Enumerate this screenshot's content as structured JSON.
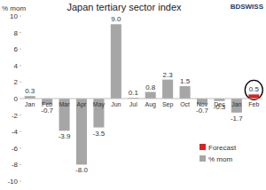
{
  "chart_data": {
    "type": "bar",
    "title": "Japan tertiary sector index",
    "y_label": "% mom",
    "logo": "BDSWISS",
    "categories": [
      "Jan",
      "Feb",
      "Mar",
      "Apr",
      "May",
      "Jun",
      "Jul",
      "Aug",
      "Sep",
      "Oct",
      "Nov",
      "Dec",
      "Jan",
      "Feb"
    ],
    "series": [
      {
        "name": "Forecast",
        "color": "#e0201f",
        "values": [
          null,
          null,
          null,
          null,
          null,
          null,
          null,
          null,
          null,
          null,
          null,
          null,
          null,
          0.5
        ],
        "value_labels": [
          null,
          null,
          null,
          null,
          null,
          null,
          null,
          null,
          null,
          null,
          null,
          null,
          null,
          "0.5"
        ]
      },
      {
        "name": "% mom",
        "color": "#a6a6a6",
        "values": [
          0.3,
          -0.7,
          -3.9,
          -8.0,
          -3.5,
          9.0,
          0.1,
          0.8,
          2.3,
          1.5,
          -0.7,
          -0.3,
          -1.7,
          null
        ],
        "value_labels": [
          "0.3",
          "-0.7",
          "-3.9",
          "-8.0",
          "-3.5",
          "9.0",
          "0.1",
          "0.8",
          "2.3",
          "1.5",
          "-0.7",
          "-0.3",
          "-1.7",
          null
        ]
      }
    ],
    "ylim": [
      -10,
      10
    ],
    "yticks": [
      -10,
      -8,
      -6,
      -4,
      -2,
      0,
      2,
      4,
      6,
      8,
      10
    ],
    "grid": false,
    "data_labels": true,
    "legend": "lower right"
  }
}
